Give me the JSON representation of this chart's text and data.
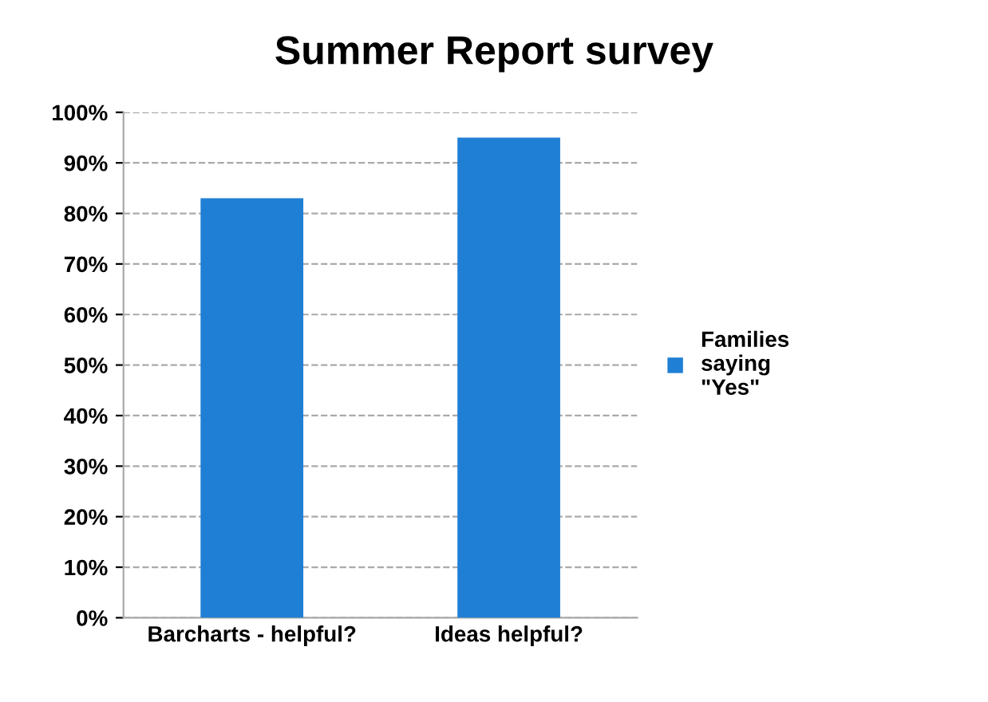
{
  "chart_data": {
    "type": "bar",
    "title": "Summer Report survey",
    "categories": [
      "Barcharts - helpful?",
      "Ideas helpful?"
    ],
    "series": [
      {
        "name": "Families saying \"Yes\"",
        "color": "#1f7fd4",
        "values": [
          83,
          95
        ]
      }
    ],
    "ylim": [
      0,
      100
    ],
    "yticks": [
      {
        "value": 0,
        "label": "0%"
      },
      {
        "value": 10,
        "label": "10%"
      },
      {
        "value": 20,
        "label": "20%"
      },
      {
        "value": 30,
        "label": "30%"
      },
      {
        "value": 40,
        "label": "40%"
      },
      {
        "value": 50,
        "label": "50%"
      },
      {
        "value": 60,
        "label": "60%"
      },
      {
        "value": 70,
        "label": "70%"
      },
      {
        "value": 80,
        "label": "80%"
      },
      {
        "value": 90,
        "label": "90%"
      },
      {
        "value": 100,
        "label": "100%"
      }
    ],
    "grid": "y",
    "legend": "right"
  }
}
